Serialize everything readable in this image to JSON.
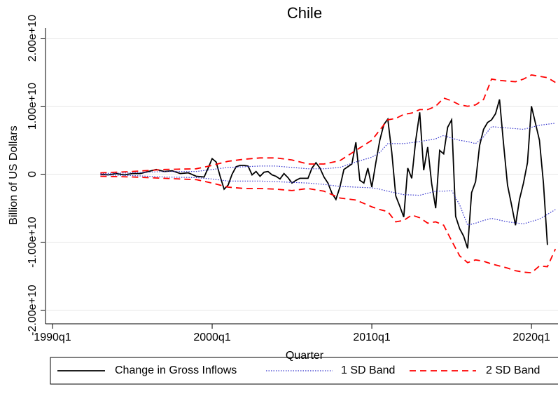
{
  "chart_data": {
    "type": "line",
    "title": "Chile",
    "x_label": "Quarter",
    "y_label": "Billion of US Dollars",
    "xlim": [
      "1990q1",
      "2021q4"
    ],
    "xticks": [
      "1990q1",
      "2000q1",
      "2010q1",
      "2020q1"
    ],
    "ylim": [
      -22000000000.0,
      21500000000.0
    ],
    "yticks": [
      {
        "value": -20000000000.0,
        "label": "-2.00e+10"
      },
      {
        "value": -10000000000.0,
        "label": "-1.00e+10"
      },
      0,
      {
        "value": 10000000000.0,
        "label": "1.00e+10"
      },
      {
        "value": 20000000000.0,
        "label": "2.00e+10"
      }
    ],
    "grid": true,
    "legend": "bottom",
    "series": [
      {
        "name": "Change in Gross Inflows",
        "color": "#000000",
        "style": "solid",
        "x": [
          "1993q1",
          "1993q3",
          "1994q1",
          "1994q3",
          "1995q1",
          "1995q3",
          "1996q1",
          "1996q3",
          "1997q1",
          "1997q3",
          "1998q1",
          "1998q3",
          "1999q1",
          "1999q3",
          "1999q4",
          "2000q1",
          "2000q2",
          "2000q3",
          "2000q4",
          "2001q1",
          "2001q2",
          "2001q3",
          "2001q4",
          "2002q1",
          "2002q2",
          "2002q3",
          "2002q4",
          "2003q1",
          "2003q2",
          "2003q3",
          "2003q4",
          "2004q1",
          "2004q2",
          "2004q3",
          "2004q4",
          "2005q1",
          "2005q2",
          "2005q3",
          "2005q4",
          "2006q1",
          "2006q2",
          "2006q3",
          "2006q4",
          "2007q1",
          "2007q2",
          "2007q3",
          "2007q4",
          "2008q1",
          "2008q2",
          "2008q3",
          "2008q4",
          "2009q1",
          "2009q2",
          "2009q3",
          "2009q4",
          "2010q1",
          "2010q2",
          "2010q3",
          "2010q4",
          "2011q1",
          "2011q2",
          "2011q3",
          "2011q4",
          "2012q1",
          "2012q2",
          "2012q3",
          "2012q4",
          "2013q1",
          "2013q2",
          "2013q3",
          "2013q4",
          "2014q1",
          "2014q2",
          "2014q3",
          "2014q4",
          "2015q1",
          "2015q2",
          "2015q3",
          "2015q4",
          "2016q1",
          "2016q2",
          "2016q3",
          "2016q4",
          "2017q1",
          "2017q2",
          "2017q3",
          "2017q4",
          "2018q1",
          "2018q2",
          "2018q3",
          "2018q4",
          "2019q1",
          "2019q2",
          "2019q3",
          "2019q4",
          "2020q1",
          "2020q2",
          "2020q3",
          "2020q4",
          "2021q1"
        ],
        "values": [
          0,
          -100000000.0,
          100000000.0,
          -100000000.0,
          100000000.0,
          100000000.0,
          400000000.0,
          700000000.0,
          400000000.0,
          500000000.0,
          100000000.0,
          200000000.0,
          -300000000.0,
          -400000000.0,
          900000000.0,
          2300000000.0,
          1800000000.0,
          -300000000.0,
          -2200000000.0,
          -1600000000.0,
          0,
          1100000000.0,
          1300000000.0,
          1300000000.0,
          1200000000.0,
          -100000000.0,
          400000000.0,
          -300000000.0,
          300000000.0,
          400000000.0,
          -100000000.0,
          -300000000.0,
          -700000000.0,
          100000000.0,
          -500000000.0,
          -1300000000.0,
          -900000000.0,
          -600000000.0,
          -600000000.0,
          -600000000.0,
          900000000.0,
          1700000000.0,
          900000000.0,
          -400000000.0,
          -1300000000.0,
          -2800000000.0,
          -3700000000.0,
          -1900000000.0,
          700000000.0,
          1100000000.0,
          1500000000.0,
          4700000000.0,
          -900000000.0,
          -1300000000.0,
          900000000.0,
          -1900000000.0,
          1700000000.0,
          5000000000.0,
          7300000000.0,
          8100000000.0,
          3200000000.0,
          -3200000000.0,
          -4700000000.0,
          -6300000000.0,
          900000000.0,
          -600000000.0,
          5000000000.0,
          9100000000.0,
          600000000.0,
          4000000000.0,
          -1400000000.0,
          -5000000000.0,
          3500000000.0,
          3000000000.0,
          6900000000.0,
          8000000000.0,
          -6200000000.0,
          -8000000000.0,
          -9100000000.0,
          -10900000000.0,
          -2700000000.0,
          -1100000000.0,
          4200000000.0,
          6600000000.0,
          7600000000.0,
          8000000000.0,
          8900000000.0,
          11000000000.0,
          4500000000.0,
          -1600000000.0,
          -4500000000.0,
          -7500000000.0,
          -3700000000.0,
          -1300000000.0,
          1700000000.0,
          10000000000.0,
          7500000000.0,
          5000000000.0,
          -1300000000.0,
          -10400000000.0
        ]
      },
      {
        "name": "1 SD Band",
        "color": "#3333cc",
        "style": "dotted",
        "x": [
          "1993q1",
          "1995q1",
          "1997q1",
          "1999q1",
          "2000q1",
          "2001q1",
          "2002q1",
          "2003q1",
          "2004q1",
          "2005q1",
          "2006q1",
          "2007q1",
          "2008q1",
          "2009q1",
          "2010q1",
          "2010q3",
          "2011q1",
          "2012q1",
          "2013q1",
          "2014q1",
          "2014q3",
          "2015q1",
          "2015q3",
          "2016q1",
          "2016q3",
          "2017q1",
          "2017q3",
          "2018q3",
          "2019q3",
          "2020q3",
          "2021q3"
        ],
        "upper": [
          100000000.0,
          200000000.0,
          400000000.0,
          400000000.0,
          700000000.0,
          1000000000.0,
          1100000000.0,
          1200000000.0,
          1200000000.0,
          1000000000.0,
          800000000.0,
          800000000.0,
          1000000000.0,
          1800000000.0,
          2500000000.0,
          3200000000.0,
          4500000000.0,
          4500000000.0,
          4800000000.0,
          5200000000.0,
          5700000000.0,
          5300000000.0,
          5000000000.0,
          4800000000.0,
          4500000000.0,
          5500000000.0,
          7000000000.0,
          6800000000.0,
          6600000000.0,
          7200000000.0,
          7500000000.0
        ],
        "lower": [
          -100000000.0,
          -200000000.0,
          -400000000.0,
          -500000000.0,
          -700000000.0,
          -1000000000.0,
          -1000000000.0,
          -1000000000.0,
          -1100000000.0,
          -1200000000.0,
          -1300000000.0,
          -1500000000.0,
          -1800000000.0,
          -1900000000.0,
          -2000000000.0,
          -2200000000.0,
          -2500000000.0,
          -3000000000.0,
          -3100000000.0,
          -2500000000.0,
          -2500000000.0,
          -2400000000.0,
          -4500000000.0,
          -7500000000.0,
          -7200000000.0,
          -6800000000.0,
          -6500000000.0,
          -7000000000.0,
          -7300000000.0,
          -6600000000.0,
          -5200000000.0
        ]
      },
      {
        "name": "2 SD Band",
        "color": "#ff0000",
        "style": "dashed",
        "x": [
          "1993q1",
          "1995q1",
          "1997q1",
          "1999q1",
          "2000q1",
          "2001q1",
          "2002q1",
          "2003q1",
          "2004q1",
          "2005q1",
          "2006q1",
          "2007q1",
          "2008q1",
          "2009q1",
          "2010q1",
          "2010q3",
          "2011q1",
          "2011q3",
          "2012q1",
          "2012q3",
          "2013q1",
          "2013q3",
          "2014q1",
          "2014q3",
          "2015q1",
          "2015q3",
          "2016q1",
          "2016q3",
          "2017q1",
          "2017q3",
          "2018q1",
          "2018q3",
          "2019q1",
          "2019q3",
          "2020q1",
          "2020q3",
          "2021q1",
          "2021q3"
        ],
        "upper": [
          200000000.0,
          400000000.0,
          700000000.0,
          800000000.0,
          1300000000.0,
          1900000000.0,
          2200000000.0,
          2400000000.0,
          2400000000.0,
          2100000000.0,
          1500000000.0,
          1500000000.0,
          2000000000.0,
          3500000000.0,
          5000000000.0,
          6500000000.0,
          8000000000.0,
          8200000000.0,
          8800000000.0,
          9000000000.0,
          9500000000.0,
          9500000000.0,
          10000000000.0,
          11200000000.0,
          10800000000.0,
          10200000000.0,
          10000000000.0,
          10200000000.0,
          11000000000.0,
          14000000000.0,
          13800000000.0,
          13700000000.0,
          13600000000.0,
          14000000000.0,
          14600000000.0,
          14400000000.0,
          14200000000.0,
          13500000000.0
        ],
        "lower": [
          -300000000.0,
          -400000000.0,
          -600000000.0,
          -800000000.0,
          -1300000000.0,
          -1900000000.0,
          -2100000000.0,
          -2100000000.0,
          -2200000000.0,
          -2400000000.0,
          -2100000000.0,
          -2500000000.0,
          -3500000000.0,
          -3800000000.0,
          -4800000000.0,
          -5200000000.0,
          -5500000000.0,
          -7000000000.0,
          -6800000000.0,
          -6000000000.0,
          -6400000000.0,
          -7200000000.0,
          -7000000000.0,
          -7500000000.0,
          -9800000000.0,
          -12000000000.0,
          -13000000000.0,
          -12600000000.0,
          -12800000000.0,
          -13200000000.0,
          -13500000000.0,
          -13800000000.0,
          -14200000000.0,
          -14400000000.0,
          -14500000000.0,
          -13500000000.0,
          -13600000000.0,
          -11000000000.0
        ]
      }
    ]
  }
}
